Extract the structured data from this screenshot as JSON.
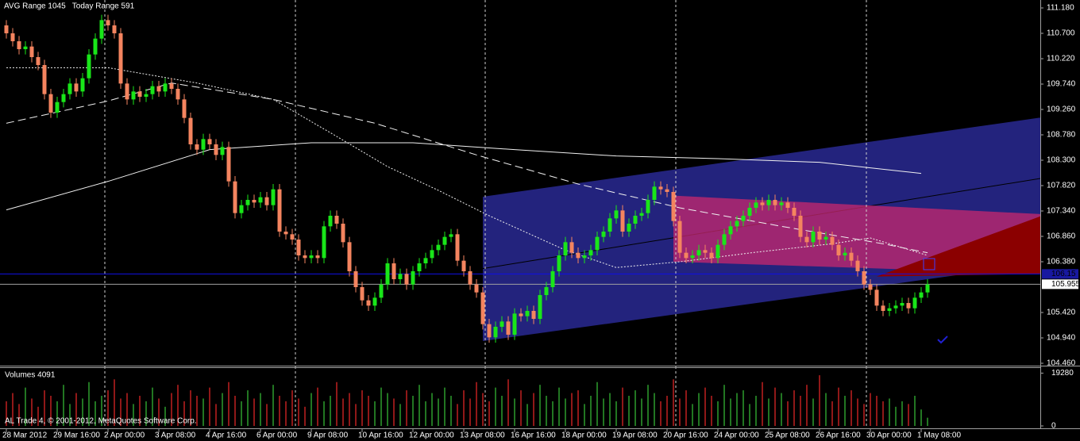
{
  "chart_data": {
    "type": "candlestick",
    "title": "AVG Range 1045   Today Range 591",
    "footer": "AL Trade 4, © 2001-2012, MetaQuotes Software Corp.",
    "categories": [
      "28 Mar 2012",
      null,
      null,
      null,
      null,
      null,
      null,
      null,
      "29 Mar 16:00",
      null,
      null,
      null,
      null,
      null,
      null,
      null,
      "2 Apr 00:00",
      null,
      null,
      null,
      null,
      null,
      null,
      null,
      "3 Apr 08:00",
      null,
      null,
      null,
      null,
      null,
      null,
      null,
      "4 Apr 16:00",
      null,
      null,
      null,
      null,
      null,
      null,
      null,
      "6 Apr 00:00",
      null,
      null,
      null,
      null,
      null,
      null,
      null,
      "9 Apr 08:00",
      null,
      null,
      null,
      null,
      null,
      null,
      null,
      "10 Apr 16:00",
      null,
      null,
      null,
      null,
      null,
      null,
      null,
      "12 Apr 00:00",
      null,
      null,
      null,
      null,
      null,
      null,
      null,
      "13 Apr 08:00",
      null,
      null,
      null,
      null,
      null,
      null,
      null,
      "16 Apr 16:00",
      null,
      null,
      null,
      null,
      null,
      null,
      null,
      "18 Apr 00:00",
      null,
      null,
      null,
      null,
      null,
      null,
      null,
      "19 Apr 08:00",
      null,
      null,
      null,
      null,
      null,
      null,
      null,
      "20 Apr 16:00",
      null,
      null,
      null,
      null,
      null,
      null,
      null,
      "24 Apr 00:00",
      null,
      null,
      null,
      null,
      null,
      null,
      null,
      "25 Apr 08:00",
      null,
      null,
      null,
      null,
      null,
      null,
      null,
      "26 Apr 16:00",
      null,
      null,
      null,
      null,
      null,
      null,
      null,
      "30 Apr 00:00",
      null,
      null,
      null,
      null,
      null,
      null,
      null,
      "1 May 08:00",
      null
    ],
    "open": [
      110.85,
      110.7,
      110.55,
      110.4,
      110.45,
      110.25,
      110.1,
      109.55,
      109.2,
      109.4,
      109.55,
      109.75,
      109.6,
      109.85,
      110.3,
      110.6,
      110.95,
      110.85,
      110.7,
      109.75,
      109.45,
      109.6,
      109.5,
      109.55,
      109.7,
      109.6,
      109.75,
      109.65,
      109.45,
      109.1,
      108.6,
      108.5,
      108.7,
      108.6,
      108.4,
      108.55,
      107.9,
      107.3,
      107.45,
      107.55,
      107.5,
      107.6,
      107.45,
      107.75,
      106.95,
      106.9,
      106.8,
      106.5,
      106.45,
      106.5,
      106.45,
      107.05,
      107.25,
      107.1,
      106.75,
      106.2,
      105.9,
      105.65,
      105.55,
      105.7,
      105.95,
      106.35,
      106.05,
      106.15,
      105.95,
      106.2,
      106.35,
      106.45,
      106.6,
      106.7,
      106.85,
      106.9,
      106.4,
      106.2,
      105.95,
      105.8,
      105.2,
      104.95,
      105.15,
      105.25,
      105.0,
      105.4,
      105.35,
      105.45,
      105.3,
      105.75,
      105.9,
      106.2,
      106.5,
      106.75,
      106.55,
      106.45,
      106.5,
      106.6,
      106.85,
      106.95,
      107.2,
      107.35,
      106.95,
      107.1,
      107.25,
      107.3,
      107.55,
      107.8,
      107.75,
      107.7,
      107.15,
      106.55,
      106.45,
      106.5,
      106.6,
      106.55,
      106.45,
      106.7,
      106.9,
      107.05,
      107.15,
      107.25,
      107.4,
      107.5,
      107.45,
      107.55,
      107.45,
      107.5,
      107.4,
      107.25,
      106.85,
      106.75,
      106.95,
      106.8,
      106.85,
      106.7,
      106.5,
      106.55,
      106.4,
      106.2,
      105.95,
      105.85,
      105.55,
      105.45,
      105.5,
      105.55,
      105.6,
      105.5,
      105.7,
      105.8
    ],
    "high": [
      110.95,
      110.8,
      110.65,
      110.55,
      110.55,
      110.35,
      110.2,
      109.65,
      109.5,
      109.65,
      109.85,
      109.85,
      109.95,
      110.4,
      110.7,
      111.05,
      111.05,
      110.95,
      110.8,
      109.85,
      109.7,
      109.7,
      109.65,
      109.8,
      109.8,
      109.85,
      109.85,
      109.75,
      109.55,
      109.2,
      108.7,
      108.8,
      108.8,
      108.7,
      108.65,
      108.65,
      108.0,
      107.55,
      107.65,
      107.65,
      107.7,
      107.7,
      107.85,
      107.85,
      107.05,
      107.0,
      106.9,
      106.6,
      106.6,
      106.6,
      107.15,
      107.35,
      107.35,
      107.2,
      106.85,
      106.3,
      106.0,
      105.75,
      105.8,
      106.05,
      106.45,
      106.45,
      106.25,
      106.25,
      106.3,
      106.45,
      106.55,
      106.7,
      106.8,
      106.95,
      107.0,
      107.0,
      106.5,
      106.3,
      106.05,
      105.9,
      105.3,
      105.25,
      105.35,
      105.35,
      105.5,
      105.5,
      105.55,
      105.55,
      105.85,
      106.0,
      106.3,
      106.6,
      106.85,
      106.85,
      106.65,
      106.6,
      106.7,
      106.95,
      107.05,
      107.3,
      107.45,
      107.45,
      107.2,
      107.35,
      107.4,
      107.65,
      107.9,
      107.9,
      107.85,
      107.8,
      107.25,
      106.65,
      106.6,
      106.7,
      106.7,
      106.65,
      106.8,
      107.0,
      107.15,
      107.25,
      107.35,
      107.5,
      107.6,
      107.6,
      107.65,
      107.65,
      107.6,
      107.6,
      107.5,
      107.35,
      106.95,
      107.05,
      107.05,
      106.95,
      106.95,
      106.8,
      106.65,
      106.65,
      106.5,
      106.3,
      106.05,
      105.95,
      105.65,
      105.6,
      105.65,
      105.7,
      105.7,
      105.8,
      105.9,
      106.05
    ],
    "low": [
      110.6,
      110.45,
      110.3,
      110.3,
      110.15,
      110.0,
      109.45,
      109.1,
      109.1,
      109.3,
      109.45,
      109.5,
      109.5,
      109.75,
      110.2,
      110.5,
      110.75,
      110.6,
      109.65,
      109.35,
      109.35,
      109.4,
      109.4,
      109.45,
      109.5,
      109.5,
      109.55,
      109.35,
      109.0,
      108.5,
      108.4,
      108.4,
      108.5,
      108.3,
      108.3,
      107.8,
      107.2,
      107.2,
      107.35,
      107.4,
      107.4,
      107.35,
      107.35,
      106.85,
      106.8,
      106.7,
      106.4,
      106.35,
      106.35,
      106.35,
      106.35,
      106.95,
      107.0,
      106.65,
      106.1,
      105.8,
      105.55,
      105.45,
      105.45,
      105.6,
      105.85,
      105.95,
      105.95,
      105.85,
      105.85,
      106.1,
      106.25,
      106.35,
      106.5,
      106.6,
      106.75,
      106.3,
      106.1,
      105.85,
      105.7,
      105.1,
      104.85,
      104.85,
      105.05,
      104.9,
      104.9,
      105.25,
      105.25,
      105.2,
      105.2,
      105.65,
      105.8,
      106.1,
      106.4,
      106.45,
      106.35,
      106.35,
      106.4,
      106.5,
      106.75,
      106.85,
      107.1,
      106.85,
      106.85,
      107.0,
      107.15,
      107.2,
      107.45,
      107.65,
      107.6,
      107.05,
      106.45,
      106.35,
      106.35,
      106.4,
      106.45,
      106.35,
      106.35,
      106.6,
      106.8,
      106.95,
      107.05,
      107.15,
      107.3,
      107.35,
      107.35,
      107.35,
      107.35,
      107.3,
      107.15,
      106.75,
      106.65,
      106.65,
      106.7,
      106.7,
      106.6,
      106.4,
      106.4,
      106.3,
      106.1,
      105.85,
      105.75,
      105.45,
      105.35,
      105.35,
      105.4,
      105.45,
      105.4,
      105.4,
      105.6,
      105.7
    ],
    "close": [
      110.7,
      110.55,
      110.4,
      110.45,
      110.25,
      110.1,
      109.55,
      109.2,
      109.4,
      109.55,
      109.75,
      109.6,
      109.85,
      110.3,
      110.6,
      110.95,
      110.85,
      110.7,
      109.75,
      109.45,
      109.6,
      109.5,
      109.55,
      109.7,
      109.6,
      109.75,
      109.65,
      109.45,
      109.1,
      108.6,
      108.5,
      108.7,
      108.6,
      108.4,
      108.55,
      107.9,
      107.3,
      107.45,
      107.55,
      107.5,
      107.6,
      107.45,
      107.75,
      106.95,
      106.9,
      106.8,
      106.5,
      106.45,
      106.5,
      106.45,
      107.05,
      107.25,
      107.1,
      106.75,
      106.2,
      105.9,
      105.65,
      105.55,
      105.7,
      105.95,
      106.35,
      106.05,
      106.15,
      105.95,
      106.2,
      106.35,
      106.45,
      106.6,
      106.7,
      106.85,
      106.9,
      106.4,
      106.2,
      105.95,
      105.8,
      105.2,
      104.95,
      105.15,
      105.25,
      105.0,
      105.4,
      105.35,
      105.45,
      105.3,
      105.75,
      105.9,
      106.2,
      106.5,
      106.75,
      106.55,
      106.45,
      106.5,
      106.6,
      106.85,
      106.95,
      107.2,
      107.35,
      106.95,
      107.1,
      107.25,
      107.3,
      107.55,
      107.8,
      107.75,
      107.7,
      107.15,
      106.55,
      106.45,
      106.5,
      106.6,
      106.55,
      106.45,
      106.7,
      106.9,
      107.05,
      107.15,
      107.25,
      107.4,
      107.5,
      107.45,
      107.55,
      107.45,
      107.5,
      107.4,
      107.25,
      106.85,
      106.75,
      106.95,
      106.8,
      106.85,
      106.7,
      106.5,
      106.55,
      106.4,
      106.2,
      105.95,
      105.85,
      105.55,
      105.45,
      105.5,
      105.55,
      105.6,
      105.5,
      105.7,
      105.8,
      105.95
    ],
    "up_color": "#19e619",
    "down_color": "#f4845f",
    "ylim": [
      104.43,
      111.33
    ],
    "yticks": [
      {
        "value": 111.18,
        "label": "111.180"
      },
      {
        "value": 110.7,
        "label": "110.700"
      },
      {
        "value": 110.22,
        "label": "110.220"
      },
      {
        "value": 109.74,
        "label": "109.740"
      },
      {
        "value": 109.26,
        "label": "109.260"
      },
      {
        "value": 108.78,
        "label": "108.780"
      },
      {
        "value": 108.3,
        "label": "108.300"
      },
      {
        "value": 107.82,
        "label": "107.820"
      },
      {
        "value": 107.34,
        "label": "107.340"
      },
      {
        "value": 106.86,
        "label": "106.860"
      },
      {
        "value": 106.38,
        "label": "106.380"
      },
      {
        "value": 105.42,
        "label": "105.420"
      },
      {
        "value": 104.94,
        "label": "104.940"
      },
      {
        "value": 104.46,
        "label": "104.460"
      }
    ],
    "channels": [
      {
        "color": "#23237d",
        "opacity": 1,
        "start": 75,
        "end": 163,
        "upper": [
          107.61,
          109.11
        ],
        "lower": [
          104.88,
          106.35
        ],
        "middle": [
          106.25,
          107.96
        ],
        "middle_color": "#000000"
      },
      {
        "color": "#c8286e",
        "opacity": 0.75,
        "start": 105,
        "end": 163,
        "upper": [
          107.63,
          107.28
        ],
        "lower": [
          106.38,
          106.15
        ]
      },
      {
        "color": "#8b0000",
        "opacity": 1,
        "start": 137,
        "end": 163,
        "upper": [
          106.1,
          107.25
        ],
        "lower": [
          106.1,
          106.15
        ]
      }
    ],
    "moving_averages": [
      {
        "style": "solid",
        "color": "#f0f0f0",
        "x": [
          0,
          16,
          32,
          48,
          64,
          80,
          96,
          112,
          128,
          144
        ],
        "values": [
          107.36,
          107.9,
          108.5,
          108.63,
          108.63,
          108.5,
          108.38,
          108.33,
          108.26,
          108.05
        ]
      },
      {
        "style": "dashed",
        "color": "#f0f0f0",
        "x": [
          0,
          16,
          26,
          42,
          58,
          74,
          90,
          106,
          122,
          138,
          145
        ],
        "values": [
          109.0,
          109.42,
          109.76,
          109.45,
          109.0,
          108.4,
          107.85,
          107.4,
          107.05,
          106.72,
          106.55
        ]
      },
      {
        "style": "dotted",
        "color": "#f0f0f0",
        "x": [
          0,
          16,
          30,
          42,
          52,
          60,
          68,
          76,
          88,
          96,
          106,
          118,
          130,
          136,
          145
        ],
        "values": [
          110.05,
          110.05,
          109.76,
          109.45,
          108.75,
          108.18,
          107.73,
          107.25,
          106.6,
          106.27,
          106.38,
          106.56,
          106.72,
          106.83,
          106.5
        ]
      }
    ],
    "levels": [
      {
        "value": 106.15,
        "color": "#1010e8",
        "box_color": "#1818a0"
      },
      {
        "value": 105.955,
        "color": "#a0a0a0",
        "box_color": "#ffffff"
      }
    ],
    "volume": {
      "title": "Volumes 4091",
      "values": [
        9000,
        12000,
        8000,
        14000,
        10000,
        7000,
        13000,
        11000,
        9000,
        15000,
        8000,
        12000,
        10000,
        16000,
        9000,
        11000,
        13000,
        17000,
        10000,
        12000,
        8000,
        11000,
        9000,
        14000,
        10000,
        7000,
        12000,
        15000,
        9000,
        13000,
        11000,
        10000,
        14000,
        8000,
        12000,
        16000,
        11000,
        9000,
        13000,
        10000,
        12000,
        8000,
        15000,
        11000,
        9000,
        13000,
        10000,
        7000,
        12000,
        14000,
        9000,
        11000,
        16000,
        10000,
        12000,
        8000,
        13000,
        11000,
        9000,
        14000,
        12000,
        10000,
        8000,
        13000,
        11000,
        15000,
        9000,
        12000,
        10000,
        14000,
        11000,
        8000,
        13000,
        10000,
        16000,
        12000,
        9000,
        14000,
        11000,
        17000,
        10000,
        13000,
        8000,
        12000,
        15000,
        11000,
        9000,
        14000,
        10000,
        12000,
        13000,
        8000,
        11000,
        16000,
        10000,
        12000,
        9000,
        14000,
        11000,
        13000,
        10000,
        15000,
        12000,
        9000,
        11000,
        17000,
        10000,
        13000,
        8000,
        12000,
        14000,
        11000,
        9000,
        15000,
        10000,
        12000,
        13000,
        8000,
        11000,
        16000,
        10000,
        14000,
        12000,
        9000,
        13000,
        11000,
        15000,
        10000,
        18500,
        12000,
        9000,
        14000,
        11000,
        13000,
        10000,
        8000,
        12000,
        11000,
        9000,
        10000,
        7000,
        9000,
        8000,
        11000,
        6000,
        3000
      ],
      "up_color": "#2e9e2e",
      "down_color": "#c02020",
      "ylim": [
        0,
        21422
      ],
      "yticks": [
        19280,
        0
      ]
    }
  }
}
